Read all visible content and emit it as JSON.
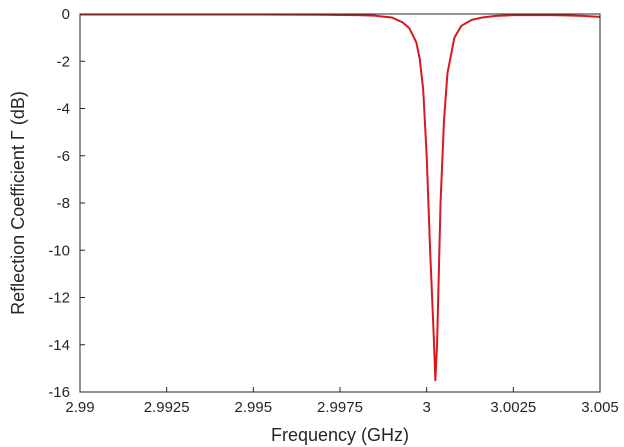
{
  "chart_data": {
    "type": "line",
    "title": "",
    "xlabel": "Frequency (GHz)",
    "ylabel": "Reflection Coefficient Γ (dB)",
    "xlim": [
      2.99,
      3.005
    ],
    "ylim": [
      -16,
      0
    ],
    "grid": true,
    "x_ticks": [
      2.99,
      2.9925,
      2.995,
      2.9975,
      3.0,
      3.0025,
      3.005
    ],
    "x_tick_labels": [
      "2.99",
      "2.9925",
      "2.995",
      "2.9975",
      "3",
      "3.0025",
      "3.005"
    ],
    "y_ticks": [
      0,
      -2,
      -4,
      -6,
      -8,
      -10,
      -12,
      -14,
      -16
    ],
    "y_tick_labels": [
      "0",
      "-2",
      "-4",
      "-6",
      "-8",
      "-10",
      "-12",
      "-14",
      "-16"
    ],
    "series": [
      {
        "color": "#d9181f",
        "x": [
          2.99,
          2.991,
          2.992,
          2.993,
          2.994,
          2.995,
          2.996,
          2.997,
          2.9975,
          2.998,
          2.9985,
          2.999,
          2.9993,
          2.9995,
          2.9997,
          2.9998,
          2.9999,
          3.0,
          3.0001,
          3.0002,
          3.00025,
          3.0003,
          3.00035,
          3.0004,
          3.0005,
          3.0006,
          3.0008,
          3.001,
          3.0013,
          3.0016,
          3.002,
          3.0025,
          3.003,
          3.0035,
          3.004,
          3.0045,
          3.005
        ],
        "y": [
          -0.02,
          -0.02,
          -0.02,
          -0.02,
          -0.02,
          -0.02,
          -0.025,
          -0.03,
          -0.04,
          -0.05,
          -0.07,
          -0.15,
          -0.35,
          -0.6,
          -1.2,
          -1.9,
          -3.2,
          -6.0,
          -10.0,
          -13.5,
          -15.5,
          -14.0,
          -11.0,
          -8.0,
          -4.5,
          -2.5,
          -1.0,
          -0.5,
          -0.25,
          -0.15,
          -0.08,
          -0.05,
          -0.04,
          -0.05,
          -0.06,
          -0.08,
          -0.12
        ]
      }
    ]
  }
}
